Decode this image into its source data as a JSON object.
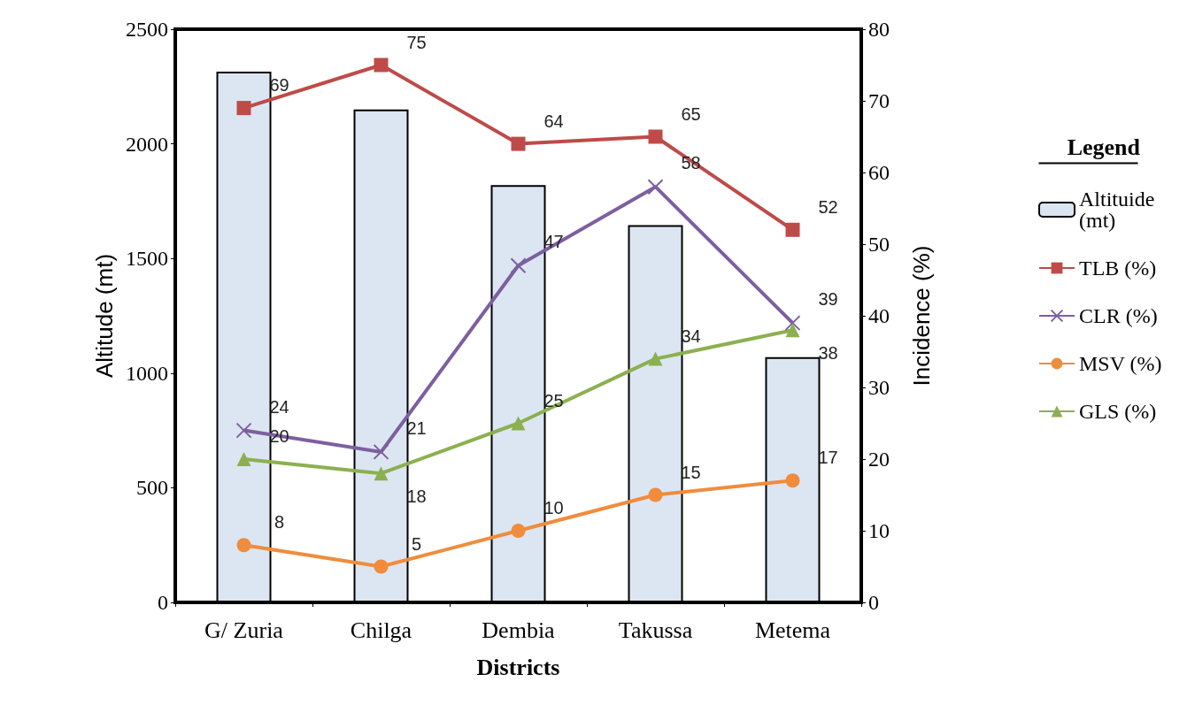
{
  "chart_data": {
    "type": "bar",
    "categories": [
      "G/ Zuria",
      "Chilga",
      "Dembia",
      "Takussa",
      "Metema"
    ],
    "xlabel": "Districts",
    "ylabel": "Altitude (mt)",
    "y2label": "Incidence (%)",
    "legend_title": "Legend",
    "series": [
      {
        "name": "Altituide (mt)",
        "color": "#dce6f2",
        "values": [
          2315,
          2150,
          1820,
          1645,
          1070
        ]
      },
      {
        "name": "TLB (%)",
        "type": "line",
        "axis": "y2",
        "marker": "square",
        "color": "#be4b48",
        "values": [
          69,
          75,
          64,
          65,
          52
        ],
        "value_labels": [
          "69",
          "75",
          "64",
          "65",
          "52"
        ]
      },
      {
        "name": "CLR (%)",
        "type": "line",
        "axis": "y2",
        "marker": "cross",
        "color": "#7d5fa0",
        "values": [
          24,
          21,
          47,
          58,
          39
        ],
        "value_labels": [
          "24",
          "21",
          "47",
          "58",
          "39"
        ]
      },
      {
        "name": "MSV (%)",
        "type": "line",
        "axis": "y2",
        "marker": "circle",
        "color": "#f08c3c",
        "values": [
          8,
          5,
          10,
          15,
          17
        ],
        "value_labels": [
          "8",
          "5",
          "10",
          "15",
          "17"
        ]
      },
      {
        "name": "GLS (%)",
        "type": "line",
        "axis": "y2",
        "marker": "triangle",
        "color": "#8cb050",
        "values": [
          20,
          18,
          25,
          34,
          38
        ],
        "value_labels": [
          "20",
          "18",
          "25",
          "34",
          "38"
        ]
      }
    ],
    "ylim": [
      0,
      2500
    ],
    "yticks": [
      0,
      500,
      1000,
      1500,
      2000,
      2500
    ],
    "y2lim": [
      0,
      80
    ],
    "y2ticks": [
      0,
      10,
      20,
      30,
      40,
      50,
      60,
      70,
      80
    ],
    "grid": false,
    "legend": "right"
  }
}
